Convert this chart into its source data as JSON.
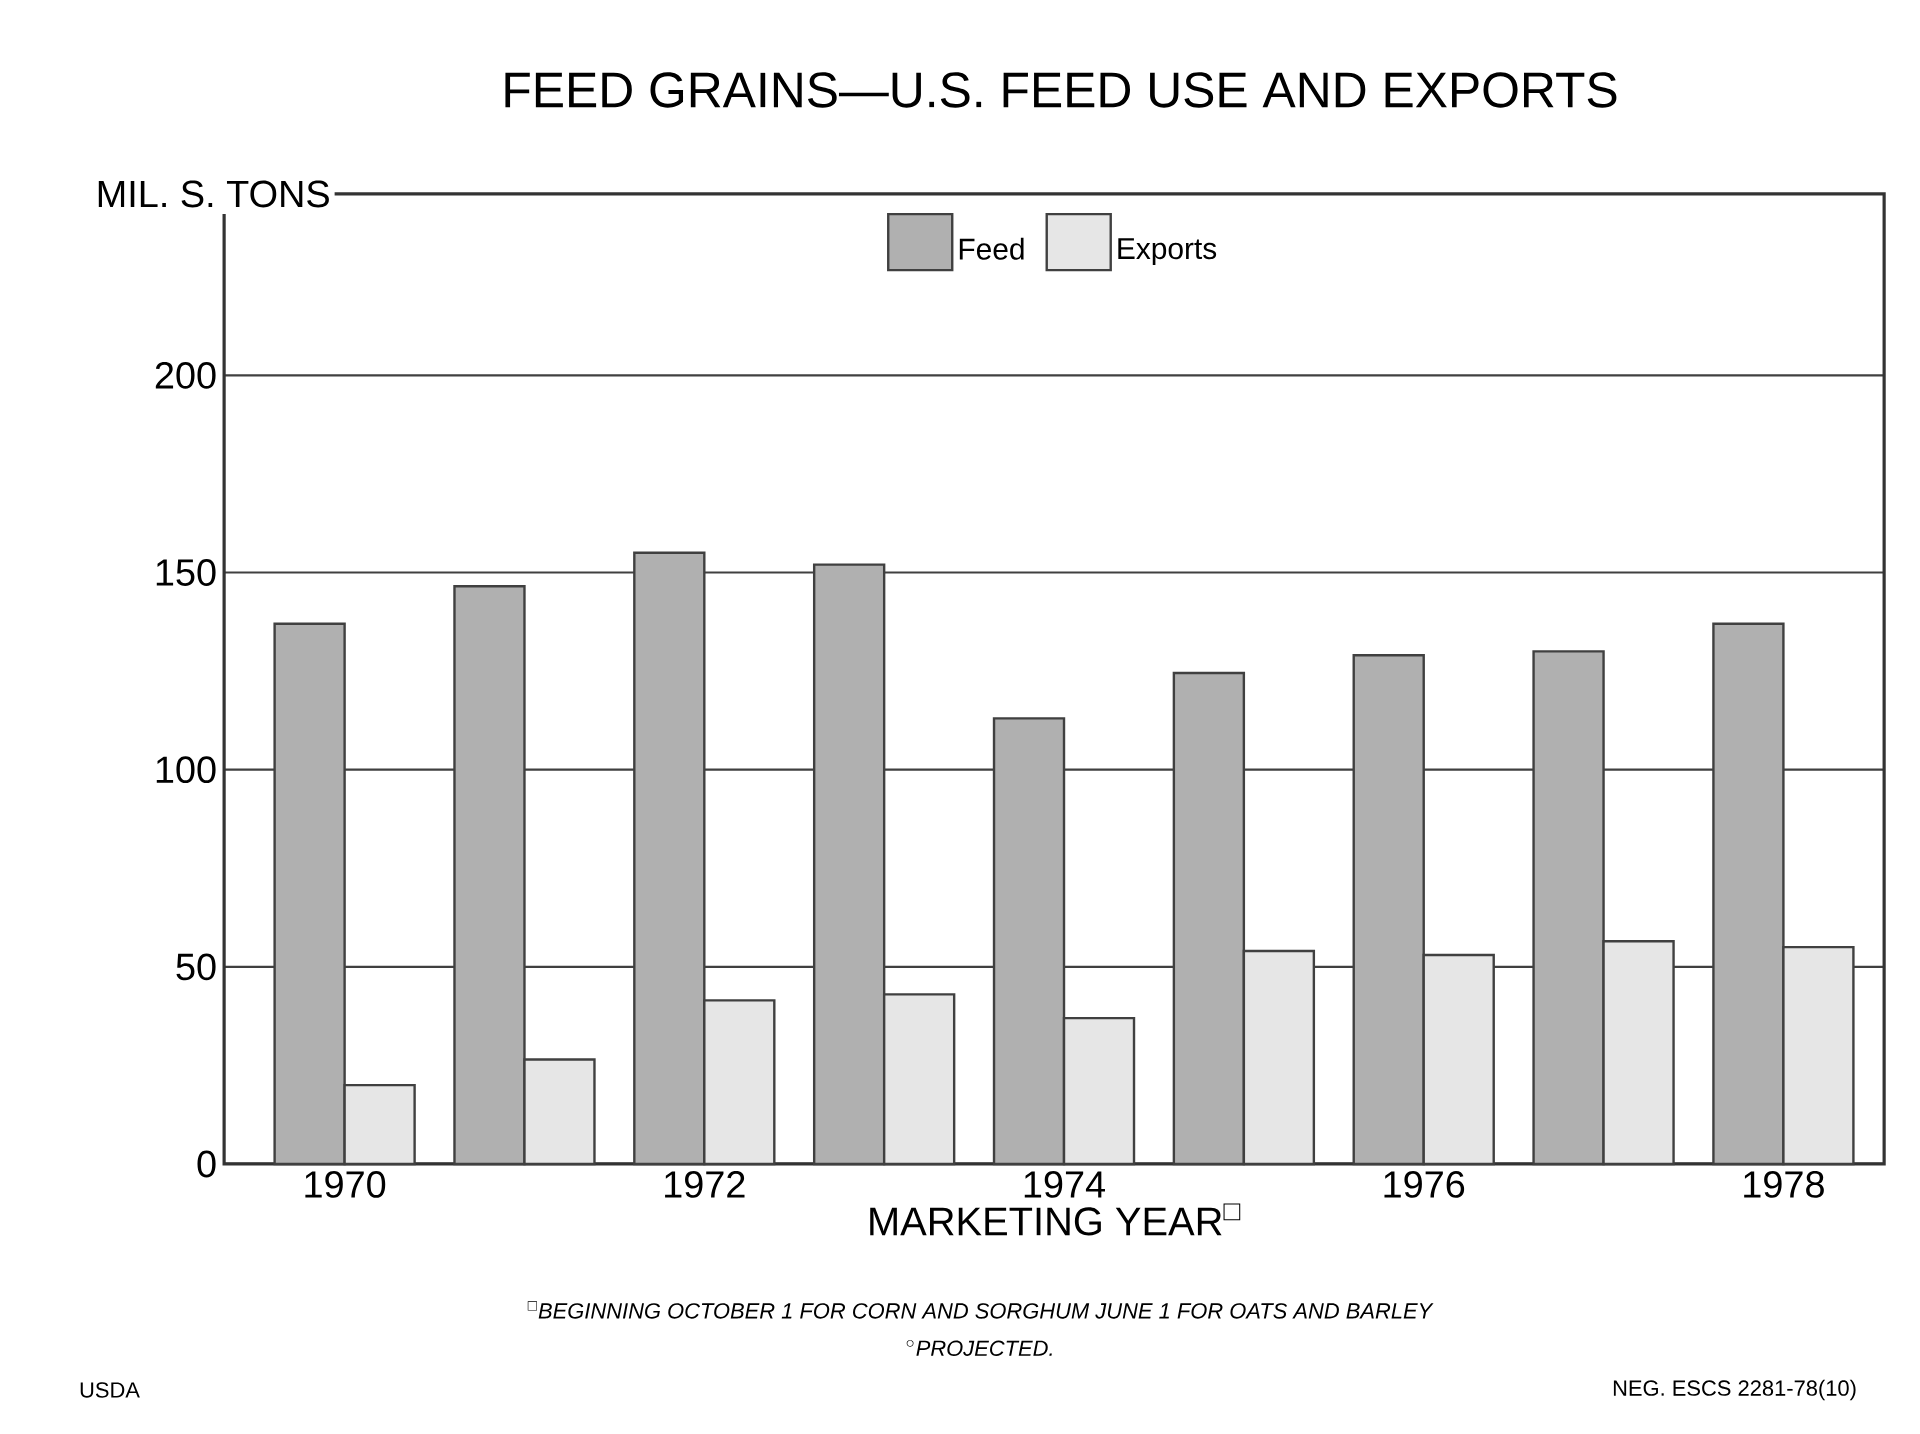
{
  "chart_data": {
    "type": "bar",
    "title": "FEED GRAINS—U.S. FEED USE AND EXPORTS",
    "ylabel": "MIL. S. TONS",
    "xlabel": "MARKETING YEAR$^{□}$",
    "categories": [
      "1970",
      null,
      "1972",
      null,
      "1974",
      null,
      "1976",
      null,
      "1978"
    ],
    "series": [
      {
        "name": "Feed",
        "color": "#b0b0b0",
        "values": [
          137,
          146.5,
          155,
          152,
          113,
          124.5,
          129,
          130,
          137
        ]
      },
      {
        "name": "Exports",
        "color": "#e6e6e6",
        "values": [
          20,
          26.5,
          41.5,
          43,
          37,
          54,
          53,
          56.5,
          55
        ]
      }
    ],
    "ylim": [
      0,
      246
    ],
    "yticks": [
      0,
      50,
      100,
      150,
      200
    ],
    "grid": "y",
    "legend": "top",
    "annotations": [
      "$^{□}$BEGINNING OCTOBER 1 FOR CORN AND SORGHUM JUNE 1 FOR OATS AND BARLEY",
      "$^{○}$PROJECTED.",
      "USDA",
      "NEG. ESCS 2281-78(10)"
    ]
  }
}
